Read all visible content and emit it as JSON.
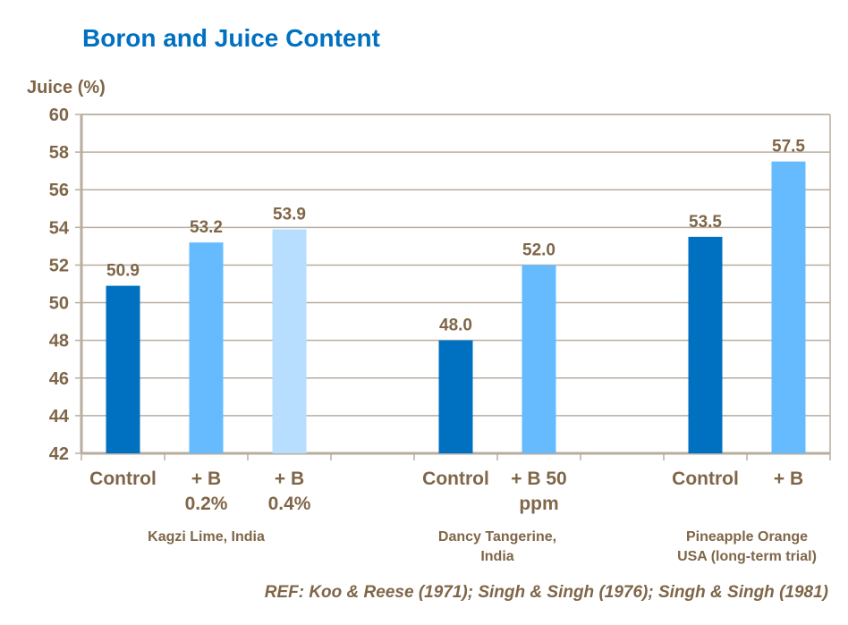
{
  "chart_data": {
    "type": "bar",
    "title": "Boron and Juice Content",
    "ylabel": "Juice (%)",
    "xlabel": "",
    "ylim": [
      42,
      60
    ],
    "yticks": [
      42,
      44,
      46,
      48,
      50,
      52,
      54,
      56,
      58,
      60
    ],
    "grid": true,
    "categories": [
      "Control",
      "+ B\n0.2%",
      "+ B\n0.4%",
      "",
      "Control",
      "+ B 50\nppm",
      "",
      "Control",
      "+ B"
    ],
    "values": [
      50.9,
      53.2,
      53.9,
      null,
      48.0,
      52.0,
      null,
      53.5,
      57.5
    ],
    "data_labels": [
      "50.9",
      "53.2",
      "53.9",
      "",
      "48.0",
      "52.0",
      "",
      "53.5",
      "57.5"
    ],
    "bar_colors": [
      "#0070C0",
      "#66BBFF",
      "#B7DEFF",
      "",
      "#0070C0",
      "#66BBFF",
      "",
      "#0070C0",
      "#66BBFF"
    ],
    "groups": [
      {
        "label": "Kagzi Lime, India",
        "from": 0,
        "to": 2
      },
      {
        "label": "Dancy Tangerine,\nIndia",
        "from": 4,
        "to": 5
      },
      {
        "label": "Pineapple Orange\nUSA  (long-term trial)",
        "from": 7,
        "to": 8
      }
    ],
    "reference": "REF: Koo & Reese (1971); Singh & Singh (1976); Singh & Singh (1981)"
  },
  "colors": {
    "title": "#0070C0",
    "text": "#7F6648",
    "grid": "#B8ADA0"
  }
}
